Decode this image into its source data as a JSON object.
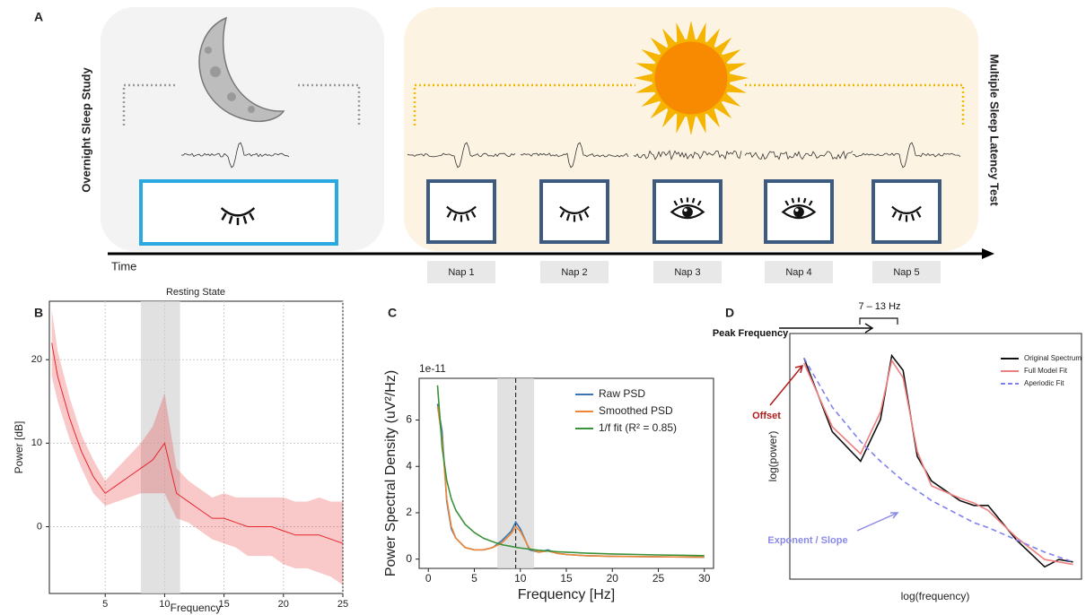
{
  "diagram": {
    "label": "A",
    "left_panel": "Overnight Sleep Study",
    "right_panel": "Multiple Sleep Latency Test",
    "axis": "Time",
    "naps": [
      "Nap 1",
      "Nap 2",
      "Nap 3",
      "Nap 4",
      "Nap 5"
    ]
  },
  "panel_labels": [
    "B",
    "C",
    "D"
  ],
  "chart_data": [
    {
      "type": "line",
      "title": "Resting State",
      "x_label": "Frequency",
      "y_label": "Power [dB]",
      "x": [
        0.5,
        1,
        2,
        3,
        4,
        5,
        6,
        7,
        8,
        9,
        10,
        11,
        12,
        13,
        14,
        15,
        16,
        17,
        18,
        19,
        20,
        21,
        22,
        23,
        24,
        25
      ],
      "series": [
        {
          "color": "#e8262c",
          "values": [
            22,
            18,
            13,
            9,
            6,
            4,
            5,
            6,
            7,
            8,
            10,
            4,
            3,
            2,
            1,
            1,
            0.5,
            0,
            0,
            0,
            -0.5,
            -1,
            -1,
            -1,
            -1.5,
            -2
          ],
          "ci": [
            4,
            3,
            2.5,
            2,
            2,
            1.5,
            2,
            2.5,
            3,
            4,
            6,
            3,
            2.5,
            2.5,
            2.5,
            3,
            3,
            3.5,
            3.5,
            3.5,
            4,
            4,
            4,
            4.5,
            4.5,
            5
          ]
        }
      ],
      "xlim": [
        0.3,
        25
      ],
      "ylim": [
        -8,
        27
      ],
      "xticks": [
        5,
        10,
        15,
        20,
        25
      ],
      "yticks": [
        0,
        10,
        20
      ],
      "grid": true,
      "highlight": [
        8,
        11.3
      ]
    },
    {
      "type": "line",
      "offset_label": "1e-11",
      "x_label": "Frequency [Hz]",
      "y_label": "Power Spectral Density (uV²/Hz)",
      "x": [
        1,
        1.5,
        2,
        2.5,
        3,
        4,
        5,
        6,
        7,
        8,
        9,
        9.5,
        10,
        11,
        12,
        13,
        14,
        15,
        17,
        20,
        25,
        30
      ],
      "series": [
        {
          "name": "Raw PSD",
          "color": "#3b75af",
          "values": [
            6.7,
            5.5,
            2.5,
            1.3,
            0.9,
            0.5,
            0.4,
            0.4,
            0.5,
            0.8,
            1.2,
            1.6,
            1.3,
            0.4,
            0.3,
            0.4,
            0.25,
            0.2,
            0.15,
            0.12,
            0.1,
            0.08
          ]
        },
        {
          "name": "Smoothed PSD",
          "color": "#ef8636",
          "values": [
            6.6,
            5.2,
            2.6,
            1.4,
            0.9,
            0.5,
            0.4,
            0.4,
            0.5,
            0.7,
            1.1,
            1.4,
            1.2,
            0.45,
            0.3,
            0.35,
            0.25,
            0.2,
            0.15,
            0.12,
            0.1,
            0.08
          ]
        },
        {
          "name": "1/f fit (R² = 0.85)",
          "color": "#3a923a",
          "values": [
            7.5,
            4.8,
            3.4,
            2.6,
            2.1,
            1.5,
            1.15,
            0.9,
            0.75,
            0.62,
            0.55,
            0.51,
            0.48,
            0.43,
            0.38,
            0.35,
            0.32,
            0.3,
            0.26,
            0.22,
            0.18,
            0.15
          ]
        }
      ],
      "xlim": [
        -1,
        31
      ],
      "ylim": [
        -0.4,
        7.8
      ],
      "xticks": [
        0,
        5,
        10,
        15,
        20,
        25,
        30
      ],
      "yticks": [
        0,
        2,
        4,
        6
      ],
      "grid": false,
      "highlight": [
        7.5,
        11.5
      ],
      "vline": 9.5
    },
    {
      "type": "line",
      "x_label": "log(frequency)",
      "y_label": "log(power)",
      "x": [
        0.5,
        1.5,
        2.5,
        3.2,
        3.6,
        4,
        4.5,
        5,
        6,
        6.5,
        7,
        8,
        9,
        9.5,
        10
      ],
      "series": [
        {
          "name": "Original Spectrum",
          "color": "#111111",
          "values": [
            9,
            6,
            4.8,
            6.5,
            9.1,
            8.5,
            5,
            4,
            3.2,
            3,
            3,
            1.6,
            0.5,
            0.8,
            0.7
          ]
        },
        {
          "name": "Full Model Fit",
          "color": "#f08080",
          "values": [
            8.8,
            6.2,
            5.1,
            6.8,
            8.9,
            8.2,
            5.2,
            3.8,
            3.3,
            3.1,
            2.8,
            1.7,
            0.8,
            0.7,
            0.6
          ]
        },
        {
          "name": "Aperiodic Fit",
          "color": "#8080f0",
          "dash": true,
          "values": [
            9,
            7,
            5.6,
            4.8,
            4.4,
            4,
            3.6,
            3.2,
            2.6,
            2.3,
            2.1,
            1.6,
            1.1,
            0.9,
            0.7
          ]
        }
      ],
      "xlim": [
        0,
        10.3
      ],
      "ylim": [
        0,
        10
      ],
      "grid": false,
      "annotations": [
        "Peak Frequency",
        "7 – 13 Hz",
        "Offset",
        "Exponent / Slope"
      ]
    }
  ]
}
